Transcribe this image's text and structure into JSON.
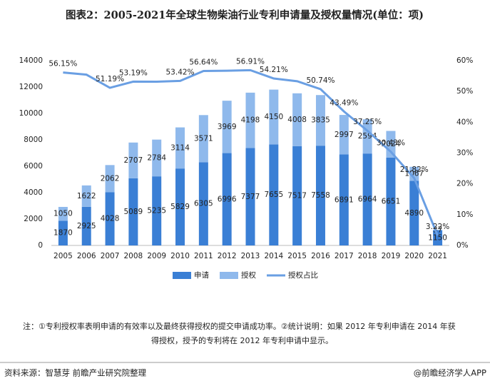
{
  "chart_data": {
    "type": "bar",
    "title": "图表2：2005-2021年全球生物柴油行业专利申请量及授权量情况(单位：项)",
    "categories": [
      "2005",
      "2006",
      "2007",
      "2008",
      "2009",
      "2010",
      "2011",
      "2012",
      "2013",
      "2014",
      "2015",
      "2016",
      "2017",
      "2018",
      "2019",
      "2020",
      "2021"
    ],
    "stacked": true,
    "series": [
      {
        "name": "申请",
        "color": "#3a7fd5",
        "values": [
          1870,
          2925,
          4028,
          5089,
          5235,
          5829,
          6305,
          6996,
          7377,
          7655,
          7517,
          7558,
          6891,
          6964,
          6651,
          4890,
          1150
        ]
      },
      {
        "name": "授权",
        "color": "#8fb9ec",
        "values": [
          1050,
          1622,
          2062,
          2707,
          2784,
          3114,
          3571,
          3969,
          4198,
          4150,
          4008,
          3835,
          2997,
          2594,
          2024,
          1067,
          37
        ]
      },
      {
        "name": "授权占比",
        "type": "line",
        "axis": "y2",
        "color": "#6a9fe3",
        "values": [
          56.15,
          55.45,
          51.19,
          53.19,
          53.18,
          53.42,
          56.64,
          56.73,
          56.91,
          54.21,
          53.32,
          50.74,
          43.49,
          37.25,
          30.43,
          21.82,
          3.22
        ],
        "value_labels": [
          "56.15%",
          null,
          "51.19%",
          "53.19%",
          null,
          "53.42%",
          "56.64%",
          null,
          "56.91%",
          "54.21%",
          null,
          "50.74%",
          "43.49%",
          "37.25%",
          "30.43%",
          "21.82%",
          "3.22%"
        ]
      }
    ],
    "ylim": [
      0,
      14000
    ],
    "yticks": [
      0,
      2000,
      4000,
      6000,
      8000,
      10000,
      12000,
      14000
    ],
    "y2lim": [
      0,
      60
    ],
    "y2ticks": [
      {
        "value": 0,
        "label": "0%"
      },
      {
        "value": 10,
        "label": "10%"
      },
      {
        "value": 20,
        "label": "20%"
      },
      {
        "value": 30,
        "label": "30%"
      },
      {
        "value": 40,
        "label": "40%"
      },
      {
        "value": 50,
        "label": "50%"
      },
      {
        "value": 60,
        "label": "60%"
      }
    ],
    "legend": "bottom",
    "notes": [
      "注：①专利授权率表明申请的有效率以及最终获得授权的提交申请成功率。②统计说明：如果 2012 年专利申请在 2014 年获",
      "得授权，授予的专利将在 2012 年专利申请中显示。"
    ],
    "source": "资料来源：智慧芽 前瞻产业研究院整理",
    "brand": "@前瞻经济学人APP"
  }
}
